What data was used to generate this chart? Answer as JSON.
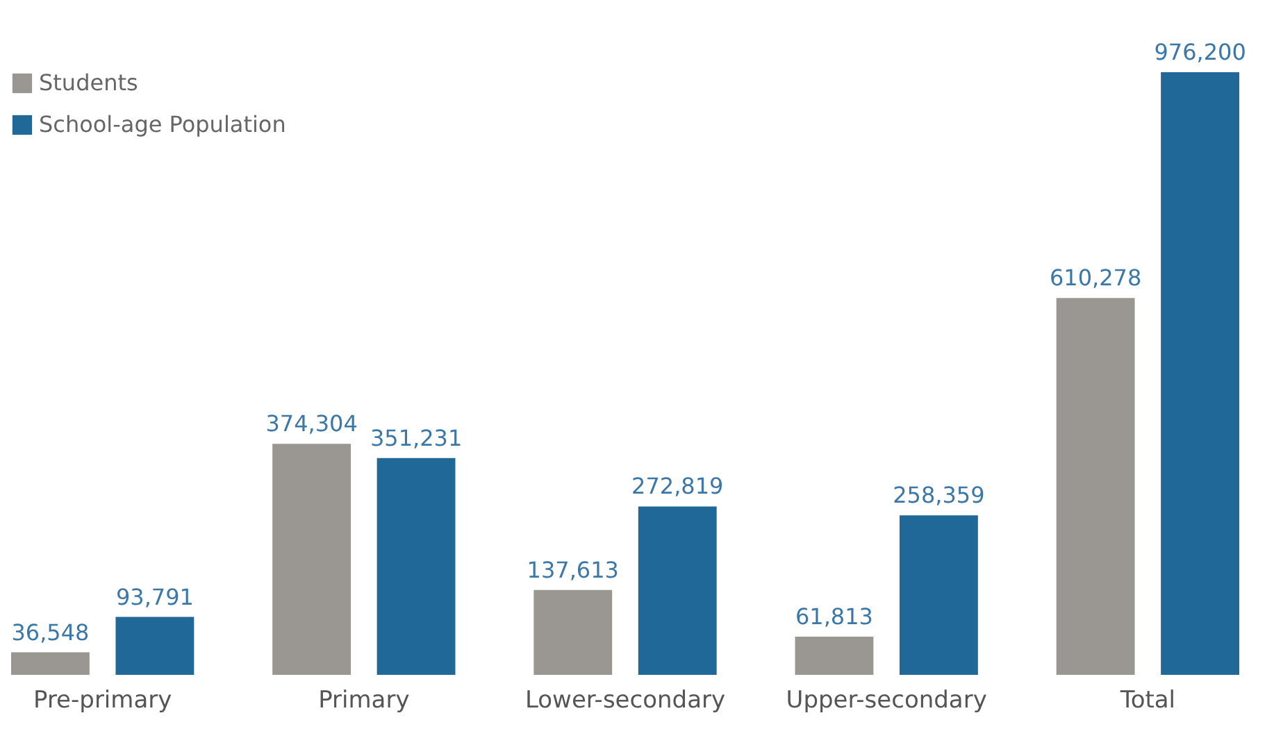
{
  "chart_data": {
    "type": "bar",
    "categories": [
      "Pre-primary",
      "Primary",
      "Lower-secondary",
      "Upper-secondary",
      "Total"
    ],
    "series": [
      {
        "name": "Students",
        "color": "#9a9792",
        "values": [
          36548,
          374304,
          137613,
          61813,
          610278
        ],
        "value_labels": [
          "36,548",
          "374,304",
          "137,613",
          "61,813",
          "610,278"
        ]
      },
      {
        "name": "School-age Population",
        "color": "#1f6898",
        "values": [
          93791,
          351231,
          272819,
          258359,
          976200
        ],
        "value_labels": [
          "93,791",
          "351,231",
          "272,819",
          "258,359",
          "976,200"
        ]
      }
    ],
    "legend": "top left",
    "grid": false
  }
}
